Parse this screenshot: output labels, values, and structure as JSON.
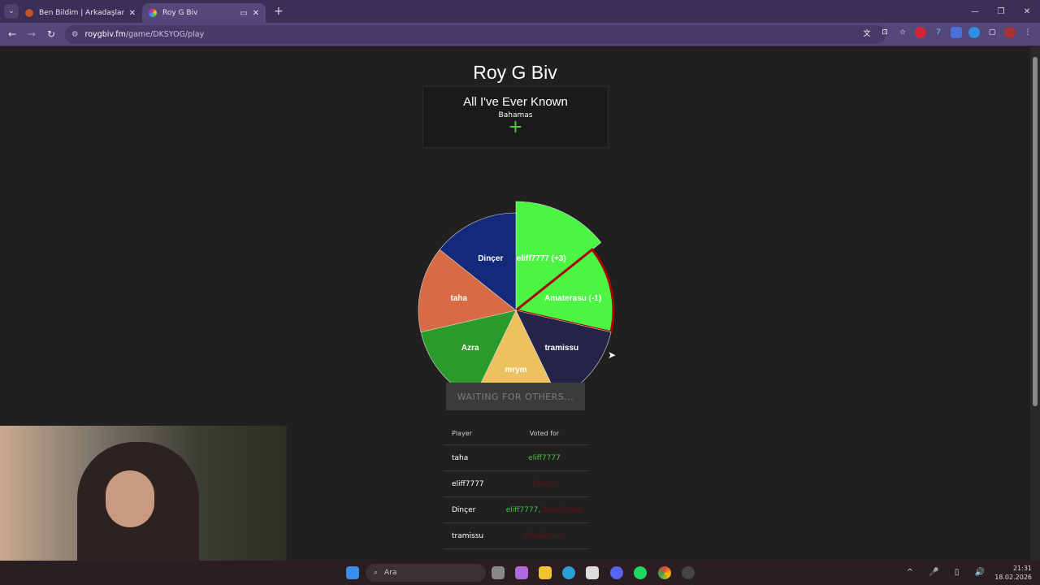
{
  "browser": {
    "tabs": [
      {
        "title": "Ben Bildim | Arkadaşlarınla Onli",
        "active": false
      },
      {
        "title": "Roy G Biv",
        "active": true
      }
    ],
    "url_host": "roygbiv.fm",
    "url_path": "/game/DKSYOG/play"
  },
  "game": {
    "title": "Roy G Biv",
    "song_title": "All I've Ever Known",
    "song_artist": "Bahamas",
    "add_icon": "+",
    "wait_label": "WAITING FOR OTHERS...",
    "accent": "#4cd137"
  },
  "chart_data": {
    "type": "pie",
    "slices": [
      {
        "label": "eliff7777 (+3)",
        "value": 1,
        "color": "#4cf542",
        "highlight": "enlarged"
      },
      {
        "label": "Amaterasu (-1)",
        "value": 1,
        "color": "#4cf542",
        "highlight": "red-border"
      },
      {
        "label": "tramissu",
        "value": 1,
        "color": "#242448"
      },
      {
        "label": "mrym",
        "value": 1,
        "color": "#edc15e"
      },
      {
        "label": "Azra",
        "value": 1,
        "color": "#2a9a28"
      },
      {
        "label": "taha",
        "value": 1,
        "color": "#d76b44"
      },
      {
        "label": "Dinçer",
        "value": 1,
        "color": "#13297a"
      }
    ]
  },
  "votes": {
    "headers": [
      "Player",
      "Voted for"
    ],
    "rows": [
      {
        "player": "taha",
        "votes": [
          {
            "name": "eliff7777",
            "correct": true
          }
        ]
      },
      {
        "player": "eliff7777",
        "votes": [
          {
            "name": "Dinçer",
            "correct": false
          }
        ]
      },
      {
        "player": "Dinçer",
        "votes": [
          {
            "name": "eliff7777",
            "correct": true
          },
          {
            "name": "Amaterasu",
            "correct": false
          }
        ]
      },
      {
        "player": "tramissu",
        "votes": [
          {
            "name": "Amaterasu",
            "correct": false
          }
        ]
      }
    ]
  },
  "taskbar": {
    "search_placeholder": "Ara",
    "time": "21:31",
    "date": "18.02.2026"
  }
}
